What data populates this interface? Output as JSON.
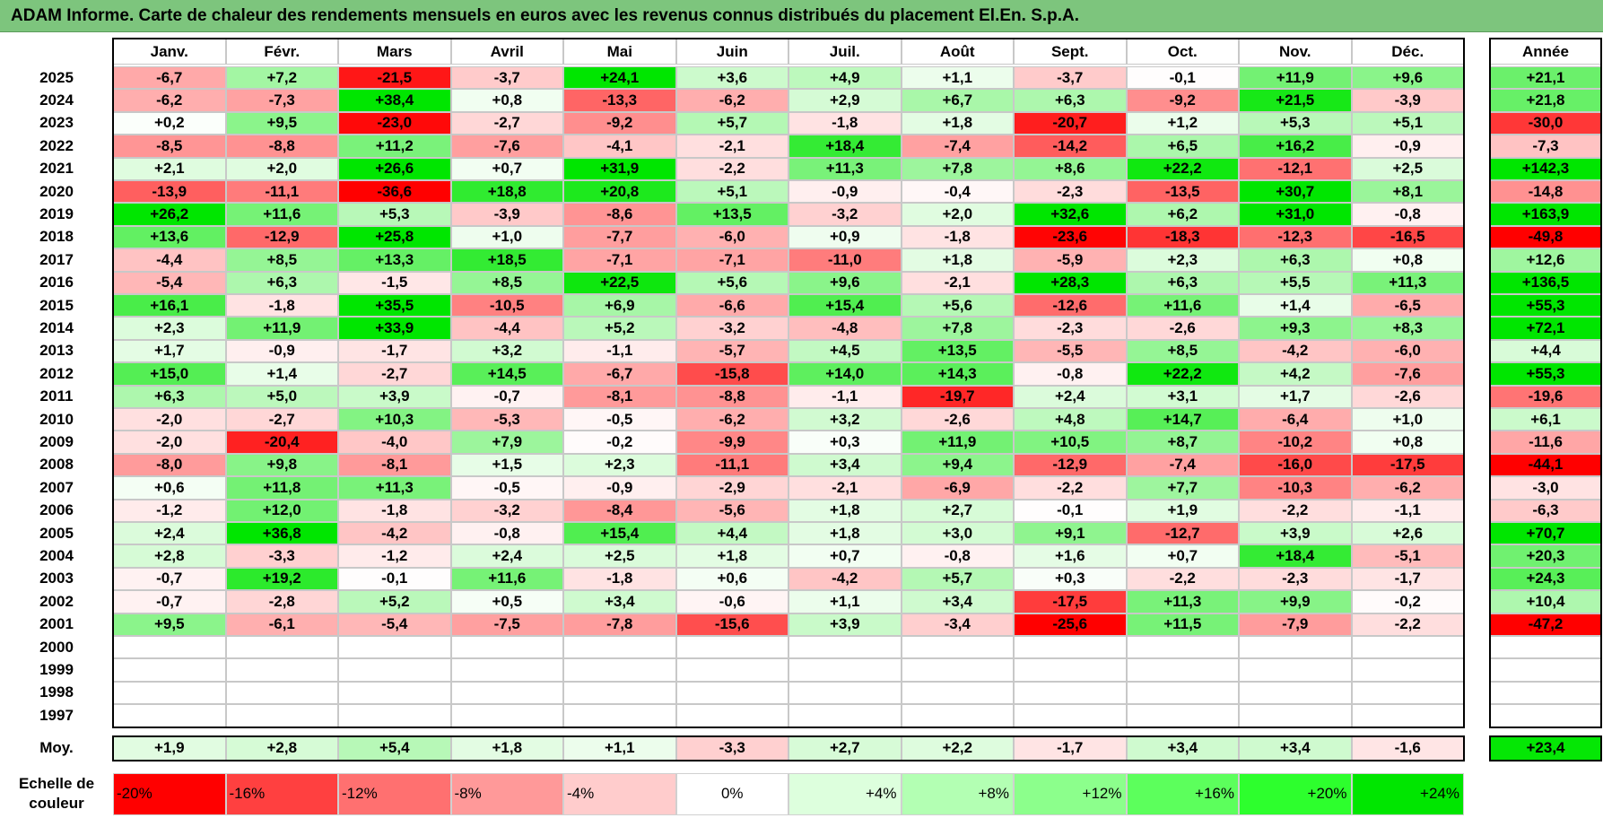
{
  "title": "ADAM Informe. Carte de chaleur des rendements mensuels en euros avec les revenus connus distribués du placement El.En. S.p.A.",
  "chart_data": {
    "type": "heatmap",
    "title": "ADAM Informe. Carte de chaleur des rendements mensuels en euros avec les revenus connus distribués du placement El.En. S.p.A.",
    "months": [
      "Janv.",
      "Févr.",
      "Mars",
      "Avril",
      "Mai",
      "Juin",
      "Juil.",
      "Août",
      "Sept.",
      "Oct.",
      "Nov.",
      "Déc."
    ],
    "annual_header": "Année",
    "rows": [
      {
        "year": "2025",
        "values": [
          "-6,7",
          "+7,2",
          "-21,5",
          "-3,7",
          "+24,1",
          "+3,6",
          "+4,9",
          "+1,1",
          "-3,7",
          "-0,1",
          "+11,9",
          "+9,6"
        ],
        "annual": "+21,1"
      },
      {
        "year": "2024",
        "values": [
          "-6,2",
          "-7,3",
          "+38,4",
          "+0,8",
          "-13,3",
          "-6,2",
          "+2,9",
          "+6,7",
          "+6,3",
          "-9,2",
          "+21,5",
          "-3,9"
        ],
        "annual": "+21,8"
      },
      {
        "year": "2023",
        "values": [
          "+0,2",
          "+9,5",
          "-23,0",
          "-2,7",
          "-9,2",
          "+5,7",
          "-1,8",
          "+1,8",
          "-20,7",
          "+1,2",
          "+5,3",
          "+5,1"
        ],
        "annual": "-30,0"
      },
      {
        "year": "2022",
        "values": [
          "-8,5",
          "-8,8",
          "+11,2",
          "-7,6",
          "-4,1",
          "-2,1",
          "+18,4",
          "-7,4",
          "-14,2",
          "+6,5",
          "+16,2",
          "-0,9"
        ],
        "annual": "-7,3"
      },
      {
        "year": "2021",
        "values": [
          "+2,1",
          "+2,0",
          "+26,6",
          "+0,7",
          "+31,9",
          "-2,2",
          "+11,3",
          "+7,8",
          "+8,6",
          "+22,2",
          "-12,1",
          "+2,5"
        ],
        "annual": "+142,3"
      },
      {
        "year": "2020",
        "values": [
          "-13,9",
          "-11,1",
          "-36,6",
          "+18,8",
          "+20,8",
          "+5,1",
          "-0,9",
          "-0,4",
          "-2,3",
          "-13,5",
          "+30,7",
          "+8,1"
        ],
        "annual": "-14,8"
      },
      {
        "year": "2019",
        "values": [
          "+26,2",
          "+11,6",
          "+5,3",
          "-3,9",
          "-8,6",
          "+13,5",
          "-3,2",
          "+2,0",
          "+32,6",
          "+6,2",
          "+31,0",
          "-0,8"
        ],
        "annual": "+163,9"
      },
      {
        "year": "2018",
        "values": [
          "+13,6",
          "-12,9",
          "+25,8",
          "+1,0",
          "-7,7",
          "-6,0",
          "+0,9",
          "-1,8",
          "-23,6",
          "-18,3",
          "-12,3",
          "-16,5"
        ],
        "annual": "-49,8"
      },
      {
        "year": "2017",
        "values": [
          "-4,4",
          "+8,5",
          "+13,3",
          "+18,5",
          "-7,1",
          "-7,1",
          "-11,0",
          "+1,8",
          "-5,9",
          "+2,3",
          "+6,3",
          "+0,8"
        ],
        "annual": "+12,6"
      },
      {
        "year": "2016",
        "values": [
          "-5,4",
          "+6,3",
          "-1,5",
          "+8,5",
          "+22,5",
          "+5,6",
          "+9,6",
          "-2,1",
          "+28,3",
          "+6,3",
          "+5,5",
          "+11,3"
        ],
        "annual": "+136,5"
      },
      {
        "year": "2015",
        "values": [
          "+16,1",
          "-1,8",
          "+35,5",
          "-10,5",
          "+6,9",
          "-6,6",
          "+15,4",
          "+5,6",
          "-12,6",
          "+11,6",
          "+1,4",
          "-6,5"
        ],
        "annual": "+55,3"
      },
      {
        "year": "2014",
        "values": [
          "+2,3",
          "+11,9",
          "+33,9",
          "-4,4",
          "+5,2",
          "-3,2",
          "-4,8",
          "+7,8",
          "-2,3",
          "-2,6",
          "+9,3",
          "+8,3"
        ],
        "annual": "+72,1"
      },
      {
        "year": "2013",
        "values": [
          "+1,7",
          "-0,9",
          "-1,7",
          "+3,2",
          "-1,1",
          "-5,7",
          "+4,5",
          "+13,5",
          "-5,5",
          "+8,5",
          "-4,2",
          "-6,0"
        ],
        "annual": "+4,4"
      },
      {
        "year": "2012",
        "values": [
          "+15,0",
          "+1,4",
          "-2,7",
          "+14,5",
          "-6,7",
          "-15,8",
          "+14,0",
          "+14,3",
          "-0,8",
          "+22,2",
          "+4,2",
          "-7,6"
        ],
        "annual": "+55,3"
      },
      {
        "year": "2011",
        "values": [
          "+6,3",
          "+5,0",
          "+3,9",
          "-0,7",
          "-8,1",
          "-8,8",
          "-1,1",
          "-19,7",
          "+2,4",
          "+3,1",
          "+1,7",
          "-2,6"
        ],
        "annual": "-19,6"
      },
      {
        "year": "2010",
        "values": [
          "-2,0",
          "-2,7",
          "+10,3",
          "-5,3",
          "-0,5",
          "-6,2",
          "+3,2",
          "-2,6",
          "+4,8",
          "+14,7",
          "-6,4",
          "+1,0"
        ],
        "annual": "+6,1"
      },
      {
        "year": "2009",
        "values": [
          "-2,0",
          "-20,4",
          "-4,0",
          "+7,9",
          "-0,2",
          "-9,9",
          "+0,3",
          "+11,9",
          "+10,5",
          "+8,7",
          "-10,2",
          "+0,8"
        ],
        "annual": "-11,6"
      },
      {
        "year": "2008",
        "values": [
          "-8,0",
          "+9,8",
          "-8,1",
          "+1,5",
          "+2,3",
          "-11,1",
          "+3,4",
          "+9,4",
          "-12,9",
          "-7,4",
          "-16,0",
          "-17,5"
        ],
        "annual": "-44,1"
      },
      {
        "year": "2007",
        "values": [
          "+0,6",
          "+11,8",
          "+11,3",
          "-0,5",
          "-0,9",
          "-2,9",
          "-2,1",
          "-6,9",
          "-2,2",
          "+7,7",
          "-10,3",
          "-6,2"
        ],
        "annual": "-3,0"
      },
      {
        "year": "2006",
        "values": [
          "-1,2",
          "+12,0",
          "-1,8",
          "-3,2",
          "-8,4",
          "-5,6",
          "+1,8",
          "+2,7",
          "-0,1",
          "+1,9",
          "-2,2",
          "-1,1"
        ],
        "annual": "-6,3"
      },
      {
        "year": "2005",
        "values": [
          "+2,4",
          "+36,8",
          "-4,2",
          "-0,8",
          "+15,4",
          "+4,4",
          "+1,8",
          "+3,0",
          "+9,1",
          "-12,7",
          "+3,9",
          "+2,6"
        ],
        "annual": "+70,7"
      },
      {
        "year": "2004",
        "values": [
          "+2,8",
          "-3,3",
          "-1,2",
          "+2,4",
          "+2,5",
          "+1,8",
          "+0,7",
          "-0,8",
          "+1,6",
          "+0,7",
          "+18,4",
          "-5,1"
        ],
        "annual": "+20,3"
      },
      {
        "year": "2003",
        "values": [
          "-0,7",
          "+19,2",
          "-0,1",
          "+11,6",
          "-1,8",
          "+0,6",
          "-4,2",
          "+5,7",
          "+0,3",
          "-2,2",
          "-2,3",
          "-1,7"
        ],
        "annual": "+24,3"
      },
      {
        "year": "2002",
        "values": [
          "-0,7",
          "-2,8",
          "+5,2",
          "+0,5",
          "+3,4",
          "-0,6",
          "+1,1",
          "+3,4",
          "-17,5",
          "+11,3",
          "+9,9",
          "-0,2"
        ],
        "annual": "+10,4"
      },
      {
        "year": "2001",
        "values": [
          "+9,5",
          "-6,1",
          "-5,4",
          "-7,5",
          "-7,8",
          "-15,6",
          "+3,9",
          "-3,4",
          "-25,6",
          "+11,5",
          "-7,9",
          "-2,2"
        ],
        "annual": "-47,2"
      },
      {
        "year": "2000",
        "values": [
          "",
          "",
          "",
          "",
          "",
          "",
          "",
          "",
          "",
          "",
          "",
          ""
        ],
        "annual": ""
      },
      {
        "year": "1999",
        "values": [
          "",
          "",
          "",
          "",
          "",
          "",
          "",
          "",
          "",
          "",
          "",
          ""
        ],
        "annual": ""
      },
      {
        "year": "1998",
        "values": [
          "",
          "",
          "",
          "",
          "",
          "",
          "",
          "",
          "",
          "",
          "",
          ""
        ],
        "annual": ""
      },
      {
        "year": "1997",
        "values": [
          "",
          "",
          "",
          "",
          "",
          "",
          "",
          "",
          "",
          "",
          "",
          ""
        ],
        "annual": ""
      }
    ],
    "average": {
      "label": "Moy.",
      "values": [
        "+1,9",
        "+2,8",
        "+5,4",
        "+1,8",
        "+1,1",
        "-3,3",
        "+2,7",
        "+2,2",
        "-1,7",
        "+3,4",
        "+3,4",
        "-1,6"
      ],
      "annual": "+23,4"
    },
    "color_scale": {
      "label_line1": "Echelle de",
      "label_line2": "couleur",
      "steps": [
        {
          "label": "-20%",
          "color": "#ff0000"
        },
        {
          "label": "-16%",
          "color": "#ff4040"
        },
        {
          "label": "-12%",
          "color": "#ff7070"
        },
        {
          "label": "-8%",
          "color": "#ff9999"
        },
        {
          "label": "-4%",
          "color": "#ffcccc"
        },
        {
          "label": "0%",
          "color": "#ffffff"
        },
        {
          "label": "+4%",
          "color": "#ddffdd"
        },
        {
          "label": "+8%",
          "color": "#b3ffb3"
        },
        {
          "label": "+12%",
          "color": "#8cff8c"
        },
        {
          "label": "+16%",
          "color": "#5cff5c"
        },
        {
          "label": "+20%",
          "color": "#2dff2d"
        },
        {
          "label": "+24%",
          "color": "#00e600"
        }
      ]
    }
  }
}
